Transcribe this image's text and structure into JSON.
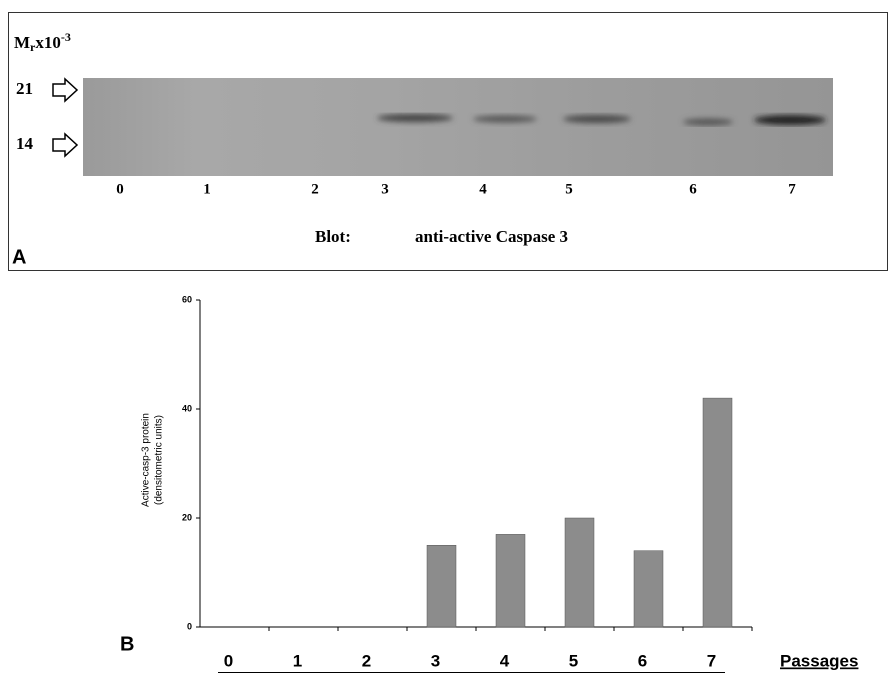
{
  "panel_a": {
    "label": "A",
    "mr": {
      "base": "M",
      "sub": "r",
      "mid": "x10",
      "sup": "-3"
    },
    "markers": [
      "21",
      "14"
    ],
    "lanes": [
      "0",
      "1",
      "2",
      "3",
      "4",
      "5",
      "6",
      "7"
    ],
    "blot_prefix": "Blot:",
    "blot_antibody": "anti-active Caspase 3"
  },
  "chart_data": {
    "type": "bar",
    "panel_label": "B",
    "ylabel": [
      "Active-casp-3 protein",
      "(densitometric units)"
    ],
    "xlabel": "Passages",
    "categories": [
      "0",
      "1",
      "2",
      "3",
      "4",
      "5",
      "6",
      "7"
    ],
    "values": [
      0,
      0,
      0,
      15,
      17,
      20,
      14,
      42
    ],
    "color": "#8c8c8c",
    "ylim": [
      0,
      60
    ],
    "yticks": [
      0,
      20,
      40,
      60
    ]
  }
}
